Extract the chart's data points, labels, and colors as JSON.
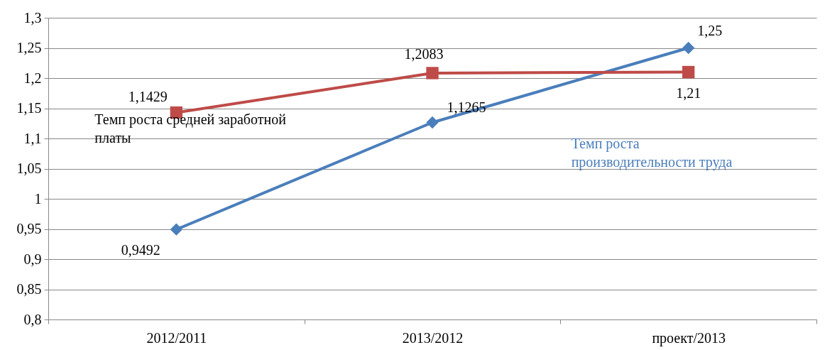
{
  "chart_data": {
    "type": "line",
    "categories": [
      "2012/2011",
      "2013/2012",
      "проект/2013"
    ],
    "series": [
      {
        "name": "Темп роста производительности труда",
        "color": "#4a7ebb",
        "marker": "diamond",
        "values": [
          0.9492,
          1.1265,
          1.25
        ],
        "value_labels": [
          "0,9492",
          "1,1265",
          "1,25"
        ]
      },
      {
        "name": "Темп роста средней заработной платы",
        "color": "#be4b48",
        "marker": "square",
        "values": [
          1.1429,
          1.2083,
          1.21
        ],
        "value_labels": [
          "1,1429",
          "1,2083",
          "1,21"
        ]
      }
    ],
    "ylim": [
      0.8,
      1.3
    ],
    "yticks": [
      {
        "value": 0.8,
        "label": "0,8"
      },
      {
        "value": 0.85,
        "label": "0,85"
      },
      {
        "value": 0.9,
        "label": "0,9"
      },
      {
        "value": 0.95,
        "label": "0,95"
      },
      {
        "value": 1,
        "label": "1"
      },
      {
        "value": 1.05,
        "label": "1,05"
      },
      {
        "value": 1.1,
        "label": "1,1"
      },
      {
        "value": 1.15,
        "label": "1,15"
      },
      {
        "value": 1.2,
        "label": "1,2"
      },
      {
        "value": 1.25,
        "label": "1,25"
      },
      {
        "value": 1.3,
        "label": "1,3"
      }
    ],
    "grid": "y",
    "line_style": "solid"
  }
}
